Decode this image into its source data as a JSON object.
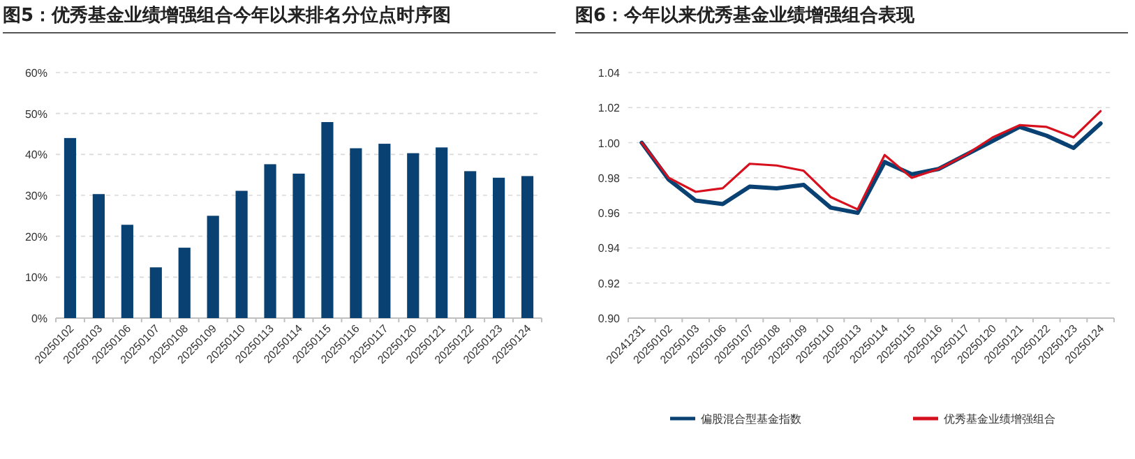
{
  "chart_data": [
    {
      "type": "bar",
      "title": "图5：优秀基金业绩增强组合今年以来排名分位点时序图",
      "categories": [
        "20250102",
        "20250103",
        "20250106",
        "20250107",
        "20250108",
        "20250109",
        "20250110",
        "20250113",
        "20250114",
        "20250115",
        "20250116",
        "20250117",
        "20250120",
        "20250121",
        "20250122",
        "20250123",
        "20250124"
      ],
      "values": [
        44,
        30.3,
        22.8,
        12.4,
        17.2,
        25,
        31.1,
        37.6,
        35.3,
        47.9,
        41.5,
        42.6,
        40.3,
        41.7,
        35.9,
        34.3,
        34.7
      ],
      "color": "#0a4173",
      "ylim": [
        0,
        60
      ],
      "yticks": [
        {
          "value": 0,
          "label": "0%"
        },
        {
          "value": 10,
          "label": "10%"
        },
        {
          "value": 20,
          "label": "20%"
        },
        {
          "value": 30,
          "label": "30%"
        },
        {
          "value": 40,
          "label": "40%"
        },
        {
          "value": 50,
          "label": "50%"
        },
        {
          "value": 60,
          "label": "60%"
        }
      ],
      "grid": "y"
    },
    {
      "type": "line",
      "title": "图6：今年以来优秀基金业绩增强组合表现",
      "categories": [
        "20241231",
        "20250102",
        "20250103",
        "20250106",
        "20250107",
        "20250108",
        "20250109",
        "20250110",
        "20250113",
        "20250114",
        "20250115",
        "20250116",
        "20250117",
        "20250120",
        "20250121",
        "20250122",
        "20250123",
        "20250124"
      ],
      "series": [
        {
          "name": "偏股混合型基金指数",
          "color": "#0a4173",
          "values": [
            1.0,
            0.979,
            0.967,
            0.965,
            0.975,
            0.974,
            0.976,
            0.963,
            0.96,
            0.989,
            0.982,
            0.985,
            0.993,
            1.001,
            1.009,
            1.004,
            0.997,
            1.011
          ]
        },
        {
          "name": "优秀基金业绩增强组合",
          "color": "#d7101e",
          "values": [
            1.0,
            0.98,
            0.972,
            0.974,
            0.988,
            0.987,
            0.984,
            0.969,
            0.962,
            0.993,
            0.98,
            0.985,
            0.993,
            1.003,
            1.01,
            1.009,
            1.003,
            1.018
          ]
        }
      ],
      "ylim": [
        0.9,
        1.04
      ],
      "yticks": [
        {
          "value": 0.9,
          "label": "0.90"
        },
        {
          "value": 0.92,
          "label": "0.92"
        },
        {
          "value": 0.94,
          "label": "0.94"
        },
        {
          "value": 0.96,
          "label": "0.96"
        },
        {
          "value": 0.98,
          "label": "0.98"
        },
        {
          "value": 1.0,
          "label": "1.00"
        },
        {
          "value": 1.02,
          "label": "1.02"
        },
        {
          "value": 1.04,
          "label": "1.04"
        }
      ],
      "grid": "y",
      "legend": "bottom"
    }
  ]
}
